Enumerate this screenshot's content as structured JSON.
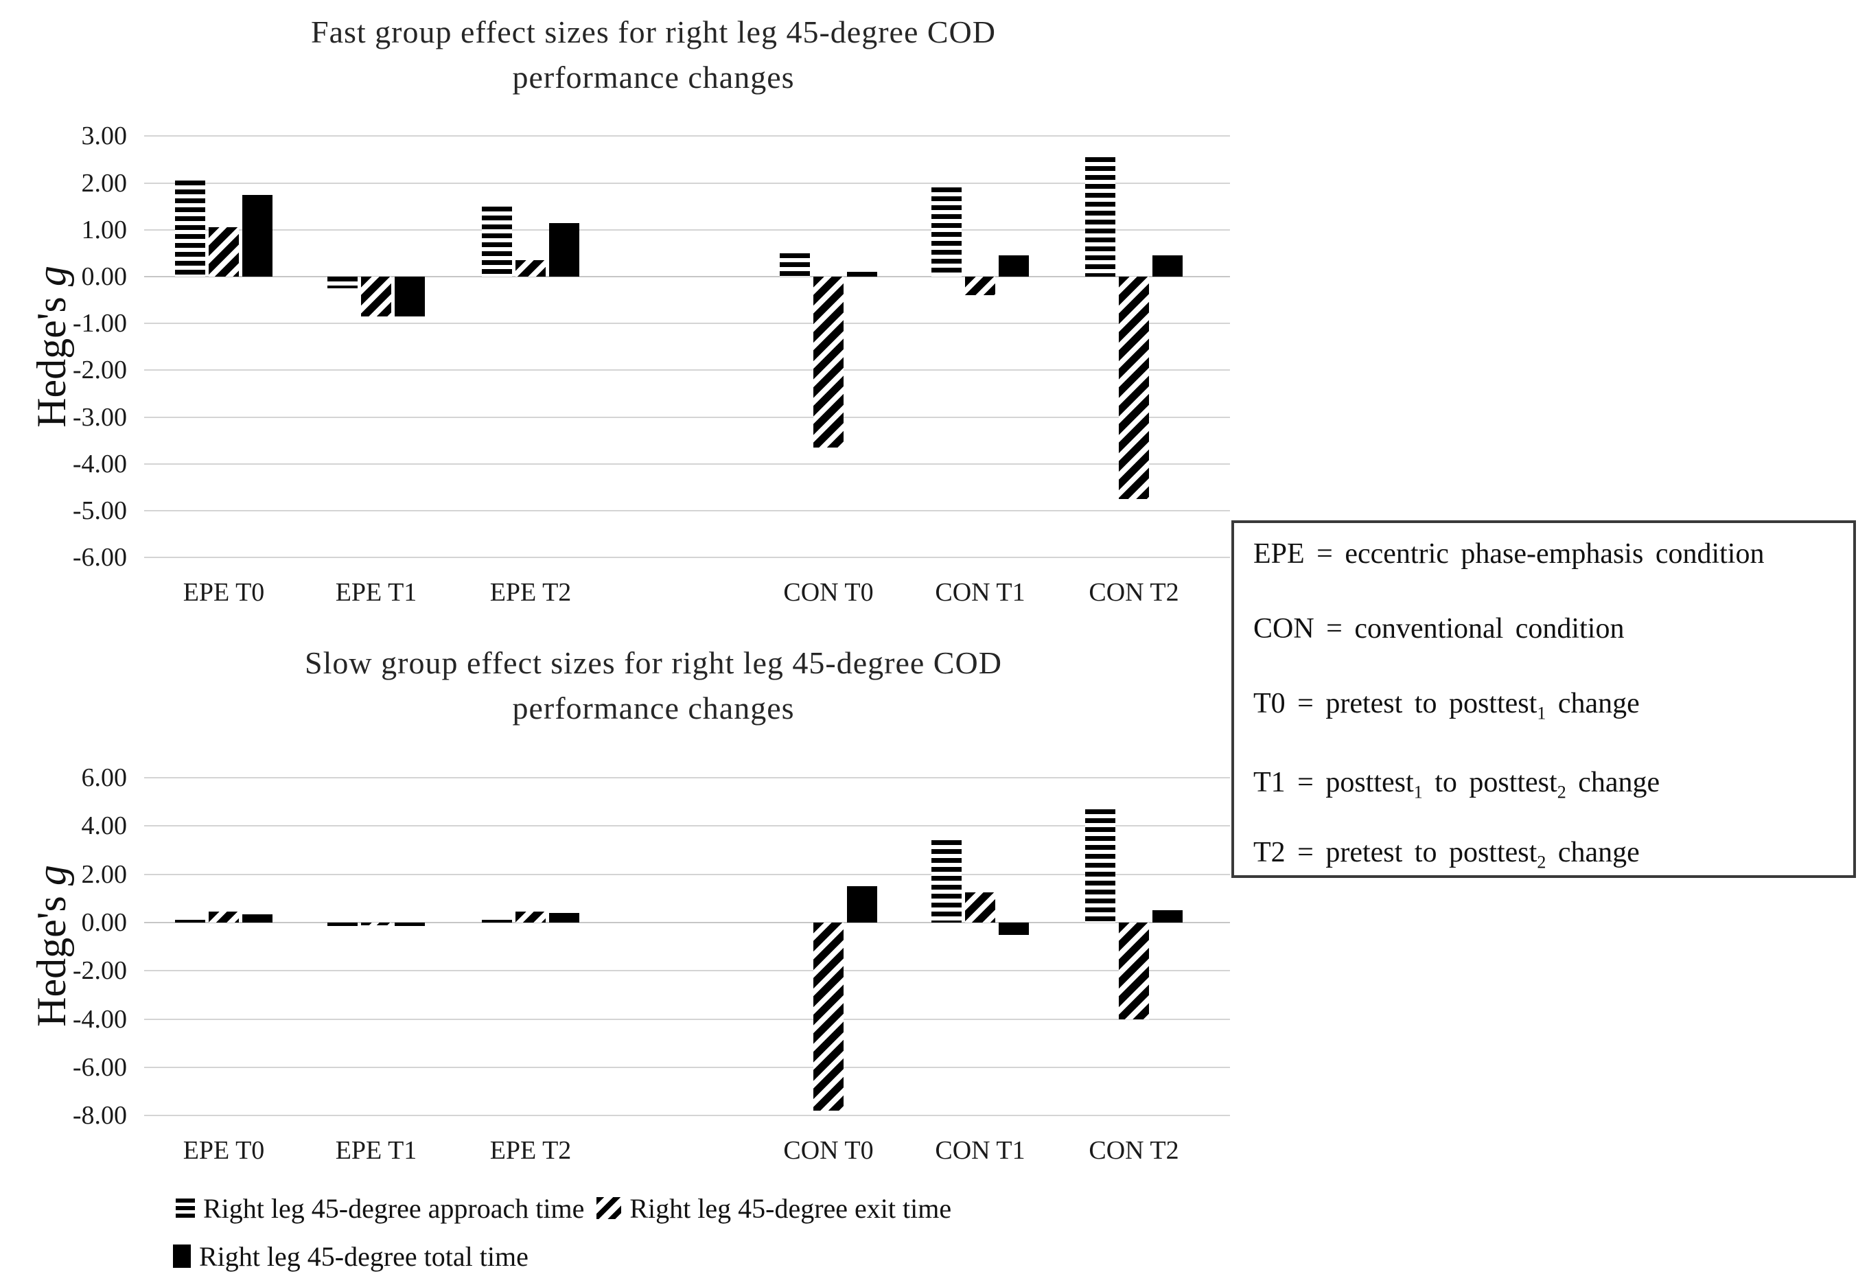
{
  "page": {
    "background": "#ffffff",
    "description_of_content": "Two grouped bar charts of Hedge's g effect sizes with a definitions box and a pattern legend"
  },
  "colors": {
    "bar": "#000000",
    "gridline": "#d4d4d4",
    "text": "#1a1a1a",
    "title": "#262626",
    "legend_border": "#3a3a3a"
  },
  "chart_data": [
    {
      "type": "bar",
      "title": "Fast group effect sizes for right leg 45-degree COD performance changes",
      "title_lines": [
        "Fast group effect sizes for right leg 45-degree COD",
        "performance changes"
      ],
      "ylabel": "Hedge's g",
      "ylabel_text": "Hedge's",
      "ylabel_italic": "g",
      "ylim": [
        -6,
        3
      ],
      "grid": true,
      "legend_position": "none",
      "yticks": [
        3,
        2,
        1,
        0,
        -1,
        -2,
        -3,
        -4,
        -5,
        -6
      ],
      "ytick_labels": [
        "3.00",
        "2.00",
        "1.00",
        "0.00",
        "-1.00",
        "-2.00",
        "-3.00",
        "-4.00",
        "-5.00",
        "-6.00"
      ],
      "categories": [
        "EPE T0",
        "EPE T1",
        "EPE T2",
        "CON T0",
        "CON T1",
        "CON T2"
      ],
      "series": [
        {
          "name": "Right leg 45-degree approach time",
          "pattern": "horizontal-stripes",
          "values": [
            2.05,
            -0.25,
            1.5,
            0.5,
            1.9,
            2.55
          ]
        },
        {
          "name": "Right leg 45-degree exit time",
          "pattern": "diagonal-stripes",
          "values": [
            1.05,
            -0.85,
            0.35,
            -3.65,
            -0.4,
            -4.75
          ]
        },
        {
          "name": "Right leg 45-degree total time",
          "pattern": "solid",
          "values": [
            1.75,
            -0.85,
            1.15,
            0.1,
            0.45,
            0.45
          ]
        }
      ]
    },
    {
      "type": "bar",
      "title": "Slow group effect sizes for right leg 45-degree COD performance changes",
      "title_lines": [
        "Slow group effect sizes for right leg 45-degree COD",
        "performance changes"
      ],
      "ylabel": "Hedge's g",
      "ylabel_text": "Hedge's",
      "ylabel_italic": "g",
      "ylim": [
        -8,
        6
      ],
      "grid": true,
      "legend_position": "none",
      "yticks": [
        6,
        4,
        2,
        0,
        -2,
        -4,
        -6,
        -8
      ],
      "ytick_labels": [
        "6.00",
        "4.00",
        "2.00",
        "0.00",
        "-2.00",
        "-4.00",
        "-6.00",
        "-8.00"
      ],
      "categories": [
        "EPE T0",
        "EPE T1",
        "EPE T2",
        "CON T0",
        "CON T1",
        "CON T2"
      ],
      "series": [
        {
          "name": "Right leg 45-degree approach time",
          "pattern": "horizontal-stripes",
          "values": [
            0.1,
            -0.15,
            0.1,
            0.0,
            3.4,
            4.7
          ]
        },
        {
          "name": "Right leg 45-degree exit time",
          "pattern": "diagonal-stripes",
          "values": [
            0.45,
            -0.1,
            0.45,
            -7.8,
            1.25,
            -4.0
          ]
        },
        {
          "name": "Right leg 45-degree total time",
          "pattern": "solid",
          "values": [
            0.35,
            -0.15,
            0.4,
            1.5,
            -0.5,
            0.5
          ]
        }
      ]
    }
  ],
  "legend_box": {
    "lines": [
      [
        {
          "text": "EPE = eccentric phase-emphasis condition"
        }
      ],
      [
        {
          "text": "CON = conventional condition"
        }
      ],
      [
        {
          "text": "T0 = pretest to posttest"
        },
        {
          "text": "1",
          "sub": true
        },
        {
          "text": " change"
        }
      ],
      [
        {
          "text": "T1 = posttest"
        },
        {
          "text": "1",
          "sub": true
        },
        {
          "text": " to posttest"
        },
        {
          "text": "2",
          "sub": true
        },
        {
          "text": " change"
        }
      ],
      [
        {
          "text": "T2 = pretest to posttest"
        },
        {
          "text": "2",
          "sub": true
        },
        {
          "text": " change"
        }
      ]
    ]
  },
  "pattern_legend": {
    "rows": [
      [
        {
          "swatch": "horizontal-stripes",
          "icon_name": "horizontal-stripes-swatch-icon",
          "label": "Right leg 45-degree approach time"
        },
        {
          "swatch": "diagonal-stripes",
          "icon_name": "diagonal-stripes-swatch-icon",
          "label": "Right leg 45-degree exit time"
        }
      ],
      [
        {
          "swatch": "solid",
          "icon_name": "solid-square-swatch-icon",
          "label": "Right leg 45-degree total time"
        }
      ]
    ]
  }
}
